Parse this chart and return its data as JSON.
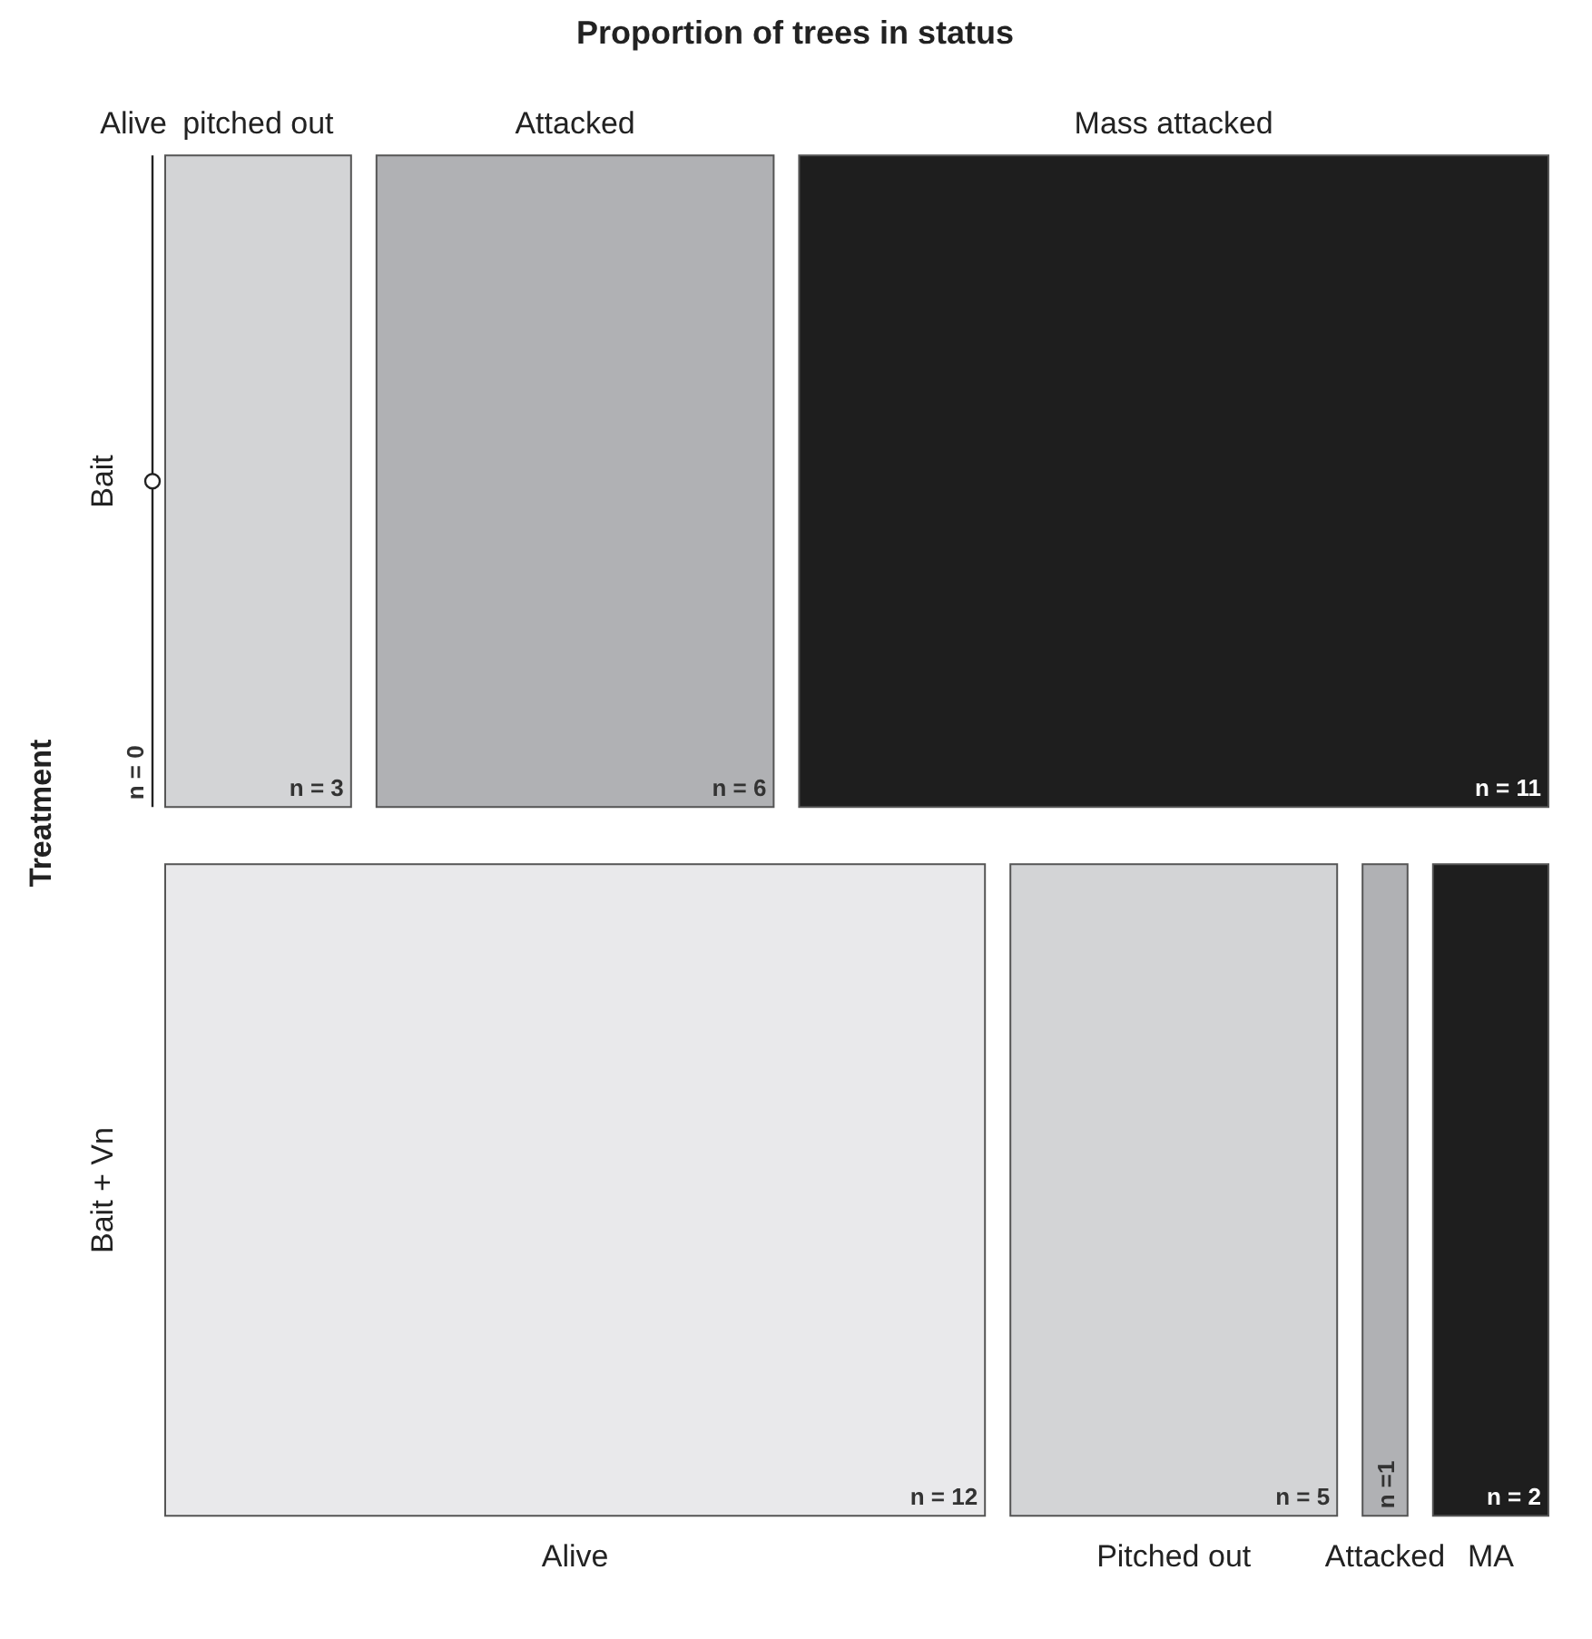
{
  "chart_data": {
    "type": "other",
    "title": "Proportion of trees in status",
    "ylabel": "Treatment",
    "categories": [
      "Bait",
      "Bait + Vn"
    ],
    "annotations": [
      "Alive",
      "pitched out",
      "Attacked",
      "Mass attacked",
      "Alive",
      "Pitched out",
      "Attacked",
      "MA"
    ],
    "series": [
      {
        "color": "#e9e9eb",
        "values": [
          0,
          12
        ],
        "value_labels": [
          "n = 0",
          "n = 12"
        ]
      },
      {
        "color": "#d3d4d6",
        "values": [
          3,
          5
        ],
        "value_labels": [
          "n = 3",
          "n = 5"
        ]
      },
      {
        "color": "#b0b1b4",
        "values": [
          6,
          1
        ],
        "value_labels": [
          "n = 6",
          "n =1"
        ]
      },
      {
        "color": "#1e1e1e",
        "values": [
          11,
          2
        ],
        "value_labels": [
          "n = 11",
          "n = 2"
        ]
      }
    ]
  }
}
